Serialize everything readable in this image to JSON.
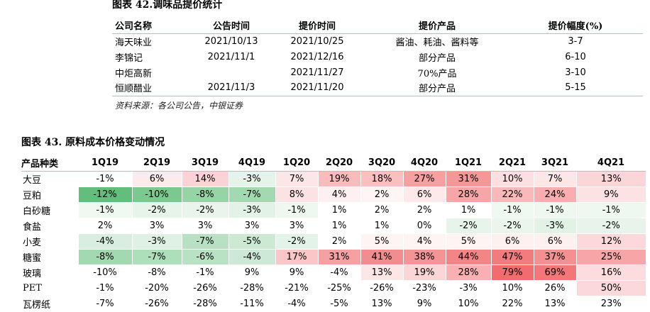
{
  "table42": {
    "title": "图表 42.调味品提价统计",
    "headers": [
      "公司名称",
      "公告时间",
      "提价时间",
      "提价产品",
      "提价幅度(%)"
    ],
    "rows": [
      [
        "海天味业",
        "2021/10/13",
        "2021/10/25",
        "酱油、耗油、酱料等",
        "3-7"
      ],
      [
        "李锦记",
        "2021/11/1",
        "2021/12/16",
        "部分产品",
        "6-10"
      ],
      [
        "中炬高新",
        "",
        "2021/11/27",
        "70%产品",
        "3-10"
      ],
      [
        "恒顺醋业",
        "2021/11/3",
        "2021/11/20",
        "部分产品",
        "5-15"
      ]
    ],
    "source": "资料来源：各公司公告，中银证券"
  },
  "table43": {
    "title": "图表 43. 原料成本价格变动情况",
    "headers": [
      "产品种类",
      "1Q19",
      "2Q19",
      "3Q19",
      "4Q19",
      "1Q20",
      "2Q20",
      "3Q20",
      "4Q20",
      "1Q21",
      "2Q21",
      "3Q21",
      "4Q21"
    ],
    "rows": [
      {
        "name": "大豆",
        "values": [
          "-1%",
          "6%",
          "14%",
          "-3%",
          "7%",
          "19%",
          "18%",
          "27%",
          "31%",
          "10%",
          "7%",
          "13%"
        ]
      },
      {
        "name": "豆粕",
        "values": [
          "-12%",
          "-10%",
          "-8%",
          "-7%",
          "8%",
          "4%",
          "2%",
          "6%",
          "28%",
          "22%",
          "24%",
          "9%"
        ]
      },
      {
        "name": "白砂糖",
        "values": [
          "-1%",
          "-2%",
          "-2%",
          "-3%",
          "-1%",
          "1%",
          "2%",
          "2%",
          "1%",
          "-1%",
          "-1%",
          "-1%"
        ]
      },
      {
        "name": "食盐",
        "values": [
          "2%",
          "3%",
          "3%",
          "3%",
          "3%",
          "1%",
          "1%",
          "0%",
          "-2%",
          "-2%",
          "-3%",
          "-2%"
        ]
      },
      {
        "name": "小麦",
        "values": [
          "-4%",
          "-3%",
          "-7%",
          "-5%",
          "-2%",
          "2%",
          "5%",
          "4%",
          "5%",
          "6%",
          "6%",
          "12%"
        ]
      },
      {
        "name": "糖蜜",
        "values": [
          "-8%",
          "-7%",
          "-6%",
          "-4%",
          "17%",
          "31%",
          "41%",
          "38%",
          "44%",
          "47%",
          "37%",
          "25%"
        ]
      },
      {
        "name": "玻璃",
        "values": [
          "-10%",
          "-8%",
          "-1%",
          "9%",
          "9%",
          "-4%",
          "13%",
          "19%",
          "28%",
          "79%",
          "69%",
          "16%"
        ]
      },
      {
        "name": "PET",
        "values": [
          "-1%",
          "-20%",
          "-26%",
          "-28%",
          "-21%",
          "-25%",
          "-26%",
          "-23%",
          "-3%",
          "10%",
          "26%",
          "50%"
        ]
      },
      {
        "name": "瓦楞纸",
        "values": [
          "-7%",
          "-26%",
          "-28%",
          "-11%",
          "-4%",
          "-5%",
          "13%",
          "9%",
          "10%",
          "22%",
          "13%",
          "23%"
        ]
      }
    ],
    "cell_colors": [
      [
        "#ffffff",
        "#fdeaea",
        "#fbd3d4",
        "#e6f3e8",
        "#fde6e6",
        "#f9bcbd",
        "#fac0c1",
        "#f6a0a2",
        "#f59698",
        "#fce0e1",
        "#fde6e6",
        "#fbd6d7"
      ],
      [
        "#63be7b",
        "#7bc98f",
        "#96d4a6",
        "#a2d9b0",
        "#fde2e3",
        "#fef0f0",
        "#fff5f5",
        "#fee9ea",
        "#f7a6a8",
        "#f9b8ba",
        "#f8aeb0",
        "#fde2e3"
      ],
      [
        "#f0f8f2",
        "#e7f4ea",
        "#e9f5ec",
        "#e3f2e6",
        "#eef8f0",
        "#ffffff",
        "#ffffff",
        "#ffffff",
        "#ffffff",
        "#f0f8f2",
        "#eef7f0",
        "#eef7f0"
      ],
      [
        "#ffffff",
        "#ffffff",
        "#ffffff",
        "#ffffff",
        "#ffffff",
        "#ffffff",
        "#ffffff",
        "#ffffff",
        "#e7f4ea",
        "#eaf5ec",
        "#e2f2e5",
        "#e8f4eb"
      ],
      [
        "#d9eedf",
        "#dff1e3",
        "#b8e1c3",
        "#cbe9d3",
        "#e4f3e7",
        "#ffffff",
        "#fff4f4",
        "#fff4f4",
        "#fff4f4",
        "#fff0f0",
        "#fff0f0",
        "#fbd9da"
      ],
      [
        "#a3d9b1",
        "#aedfbb",
        "#b9e2c4",
        "#cde9d5",
        "#fac6c7",
        "#f6a0a2",
        "#f38c8e",
        "#f49496",
        "#f38587",
        "#f27b7e",
        "#f59091",
        "#f7a6a8"
      ],
      [
        "#ffffff",
        "#ffffff",
        "#ffffff",
        "#ffffff",
        "#ffffff",
        "#ffffff",
        "#fde6e6",
        "#fcd5d6",
        "#f8b0b2",
        "#f26b6e",
        "#f37679",
        "#fcdcdd"
      ],
      [
        "#ffffff",
        "#ffffff",
        "#ffffff",
        "#ffffff",
        "#ffffff",
        "#ffffff",
        "#ffffff",
        "#ffffff",
        "#ffffff",
        "#ffffff",
        "#ffffff",
        "#fbd9da"
      ],
      [
        "#ffffff",
        "#ffffff",
        "#ffffff",
        "#ffffff",
        "#ffffff",
        "#ffffff",
        "#ffffff",
        "#ffffff",
        "#ffffff",
        "#ffffff",
        "#ffffff",
        "#ffffff"
      ]
    ]
  }
}
